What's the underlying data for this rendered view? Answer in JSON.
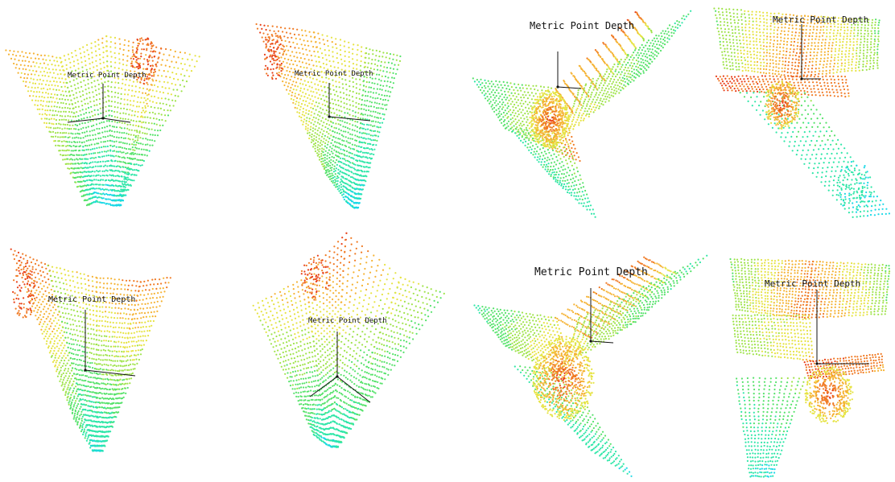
{
  "figure": {
    "caption_label": "Metric Point Depth",
    "panels": [
      {
        "id": "p1",
        "label": "Metric Point Depth"
      },
      {
        "id": "p2",
        "label": "Metric Point Depth"
      },
      {
        "id": "p3",
        "label": "Metric Point Depth"
      },
      {
        "id": "p4",
        "label": "Metric Point Depth"
      },
      {
        "id": "p5",
        "label": "Metric Point Depth"
      },
      {
        "id": "p6",
        "label": "Metric Point Depth"
      },
      {
        "id": "p7",
        "label": "Metric Point Depth"
      },
      {
        "id": "p8",
        "label": "Metric Point Depth"
      }
    ],
    "colormap": [
      "#19d8e6",
      "#2fe6a8",
      "#55e26a",
      "#9fe34a",
      "#e6e342",
      "#f5b232",
      "#f07a24",
      "#e8401a"
    ],
    "axis_color": "#111111",
    "background": "#ffffff"
  }
}
